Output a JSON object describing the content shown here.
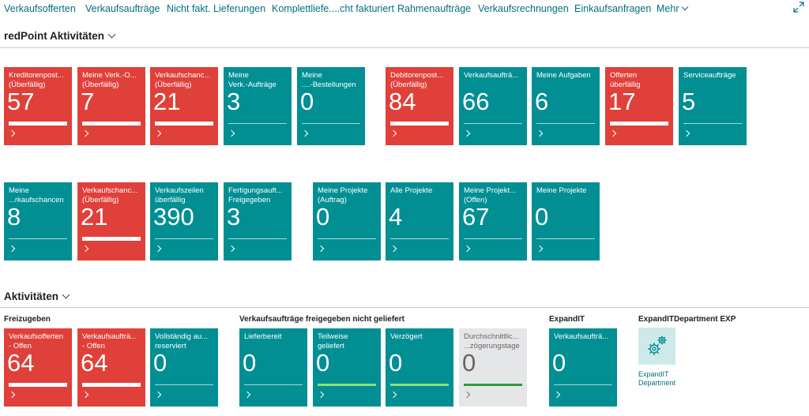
{
  "nav": {
    "items": [
      "Verkaufsofferten",
      "Verkaufsaufträge",
      "Nicht fakt. Lieferungen",
      "Komplettliefe....cht fakturiert",
      "Rahmenaufträge",
      "Verkaufsrechnungen",
      "Einkaufsanfragen"
    ],
    "more": "Mehr"
  },
  "sections": {
    "redpoint": "redPoint Aktivitäten",
    "aktivitaeten": "Aktivitäten"
  },
  "tiles_row1": [
    {
      "label1": "Kreditorenpost...",
      "label2": "(Überfällig)",
      "value": "57",
      "color": "red"
    },
    {
      "label1": "Meine Verk.-O...",
      "label2": "(Überfällig)",
      "value": "7",
      "color": "red"
    },
    {
      "label1": "Verkaufschanc...",
      "label2": "(Überfällig)",
      "value": "21",
      "color": "red"
    },
    {
      "label1": "Meine",
      "label2": "Verk.-Aufträge",
      "value": "3",
      "color": "teal"
    },
    {
      "label1": "Meine",
      "label2": "....-Bestellungen",
      "value": "0",
      "color": "teal"
    },
    {
      "label1": "Debitorenpost...",
      "label2": "(Überfällig)",
      "value": "84",
      "color": "red"
    },
    {
      "label1": "Verkaufsaufträ...",
      "label2": "",
      "value": "66",
      "color": "teal"
    },
    {
      "label1": "Meine Aufgaben",
      "label2": "",
      "value": "6",
      "color": "teal"
    },
    {
      "label1": "Offerten",
      "label2": "überfällig",
      "value": "17",
      "color": "red"
    },
    {
      "label1": "Serviceaufträge",
      "label2": "",
      "value": "5",
      "color": "teal"
    }
  ],
  "tiles_row2": [
    {
      "label1": "Meine",
      "label2": "...rkaufschancen",
      "value": "8",
      "color": "teal"
    },
    {
      "label1": "Verkaufschanc...",
      "label2": "(Überfällig)",
      "value": "21",
      "color": "red"
    },
    {
      "label1": "Verkaufszeilen",
      "label2": "überfällig",
      "value": "390",
      "color": "teal"
    },
    {
      "label1": "Fertigungsauft...",
      "label2": "Freigegeben",
      "value": "3",
      "color": "teal"
    },
    {
      "label1": "Meine Projekte",
      "label2": "(Auftrag)",
      "value": "0",
      "color": "teal"
    },
    {
      "label1": "Alle Projekte",
      "label2": "",
      "value": "4",
      "color": "teal"
    },
    {
      "label1": "Meine Projekt...",
      "label2": "(Offen)",
      "value": "67",
      "color": "teal"
    },
    {
      "label1": "Meine Projekte",
      "label2": "",
      "value": "0",
      "color": "teal"
    }
  ],
  "groups": {
    "freizugeben": "Freizugeben",
    "nicht_geliefert": "Verkaufsaufträge freigegeben nicht geliefert",
    "expandit": "ExpandIT",
    "expandit_dept": "ExpandITDepartment EXP"
  },
  "tiles_row3": [
    {
      "label1": "Verkaufsofferten",
      "label2": "- Offen",
      "value": "64",
      "color": "red"
    },
    {
      "label1": "Verkaufsaufträ...",
      "label2": "- Offen",
      "value": "64",
      "color": "red"
    },
    {
      "label1": "Vollständig au...",
      "label2": "reserviert",
      "value": "0",
      "color": "teal"
    },
    {
      "label1": "Lieferbereit",
      "label2": "",
      "value": "0",
      "color": "teal"
    },
    {
      "label1": "Teilweise",
      "label2": "geliefert",
      "value": "0",
      "color": "teal-green"
    },
    {
      "label1": "Verzögert",
      "label2": "",
      "value": "0",
      "color": "teal-green"
    },
    {
      "label1": "Durchschnittlic...",
      "label2": "...zögerungstage",
      "value": "0",
      "color": "gray"
    },
    {
      "label1": "Verkaufsaufträ...",
      "label2": "",
      "value": "0",
      "color": "teal"
    }
  ],
  "action": {
    "label1": "ExpandIT",
    "label2": "Department",
    "icon": "gears-icon"
  }
}
